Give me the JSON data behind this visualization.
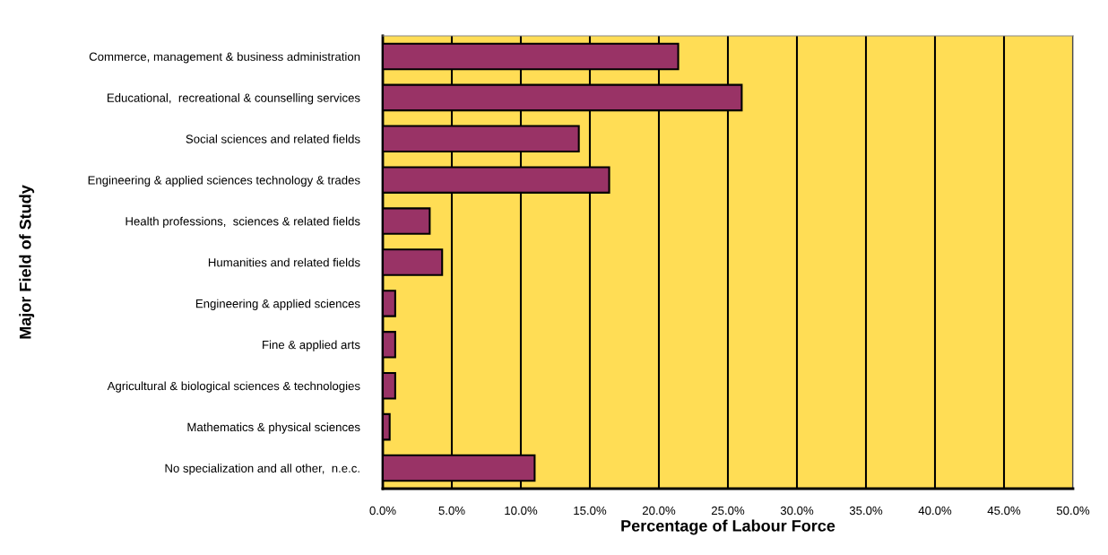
{
  "chart_data": {
    "type": "bar",
    "orientation": "horizontal",
    "xlabel": "Percentage of Labour Force",
    "ylabel": "Major Field of Study",
    "categories": [
      "Commerce, management & business administration",
      "Educational,  recreational & counselling services",
      "Social sciences and related fields",
      "Engineering & applied sciences technology & trades",
      "Health professions,  sciences & related fields",
      "Humanities and related fields",
      "Engineering & applied sciences",
      "Fine & applied arts",
      "Agricultural & biological sciences & technologies",
      "Mathematics & physical sciences",
      "No specialization and all other,  n.e.c."
    ],
    "values": [
      21.4,
      26.0,
      14.2,
      16.4,
      3.4,
      4.3,
      0.9,
      0.9,
      0.9,
      0.5,
      11.0
    ],
    "color": "#993366",
    "xlim": [
      0,
      50
    ],
    "xticks": [
      {
        "value": 0,
        "label": "0.0%"
      },
      {
        "value": 5,
        "label": "5.0%"
      },
      {
        "value": 10,
        "label": "10.0%"
      },
      {
        "value": 15,
        "label": "15.0%"
      },
      {
        "value": 20,
        "label": "20.0%"
      },
      {
        "value": 25,
        "label": "25.0%"
      },
      {
        "value": 30,
        "label": "30.0%"
      },
      {
        "value": 35,
        "label": "35.0%"
      },
      {
        "value": 40,
        "label": "40.0%"
      },
      {
        "value": 45,
        "label": "45.0%"
      },
      {
        "value": 50,
        "label": "50.0%"
      }
    ],
    "grid": "x",
    "legend": false
  }
}
